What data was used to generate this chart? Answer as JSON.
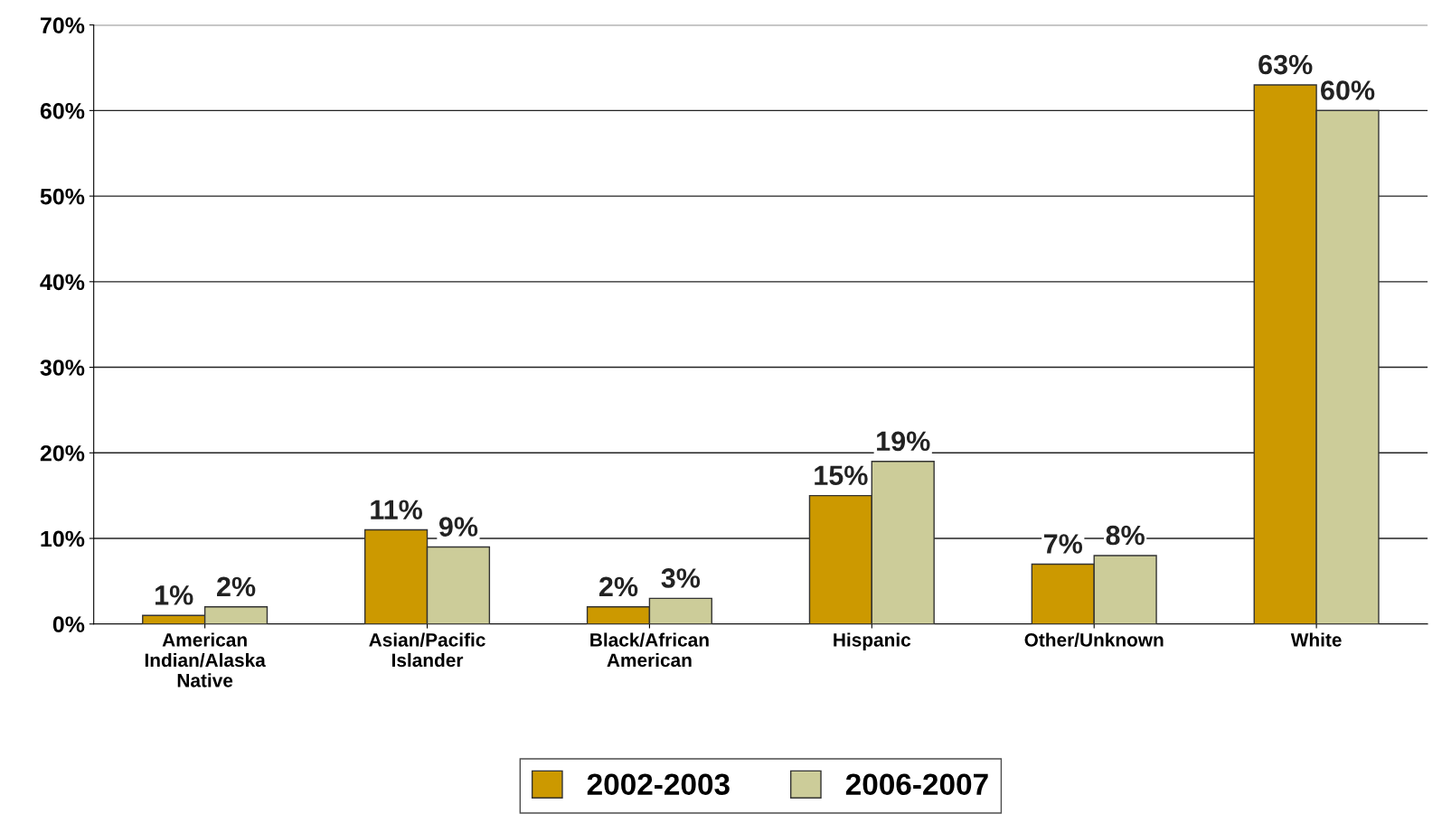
{
  "chart_data": {
    "type": "bar",
    "categories": [
      "American\nIndian/Alaska\nNative",
      "Asian/Pacific\nIslander",
      "Black/African\nAmerican",
      "Hispanic",
      "Other/Unknown",
      "White"
    ],
    "series": [
      {
        "name": "2002-2003",
        "color": "#cc9900",
        "values": [
          1,
          11,
          2,
          15,
          7,
          63
        ],
        "value_labels": [
          "1%",
          "11%",
          "2%",
          "15%",
          "7%",
          "63%"
        ]
      },
      {
        "name": "2006-2007",
        "color": "#cccc99",
        "values": [
          2,
          9,
          3,
          19,
          8,
          60
        ],
        "value_labels": [
          "2%",
          "9%",
          "3%",
          "19%",
          "8%",
          "60%"
        ]
      }
    ],
    "ylim": [
      0,
      70
    ],
    "yticks": [
      {
        "value": 0,
        "label": "0%"
      },
      {
        "value": 10,
        "label": "10%"
      },
      {
        "value": 20,
        "label": "20%"
      },
      {
        "value": 30,
        "label": "30%"
      },
      {
        "value": 40,
        "label": "40%"
      },
      {
        "value": 50,
        "label": "50%"
      },
      {
        "value": 60,
        "label": "60%"
      },
      {
        "value": 70,
        "label": "70%"
      }
    ],
    "grid": "y",
    "legend": "bottom"
  }
}
